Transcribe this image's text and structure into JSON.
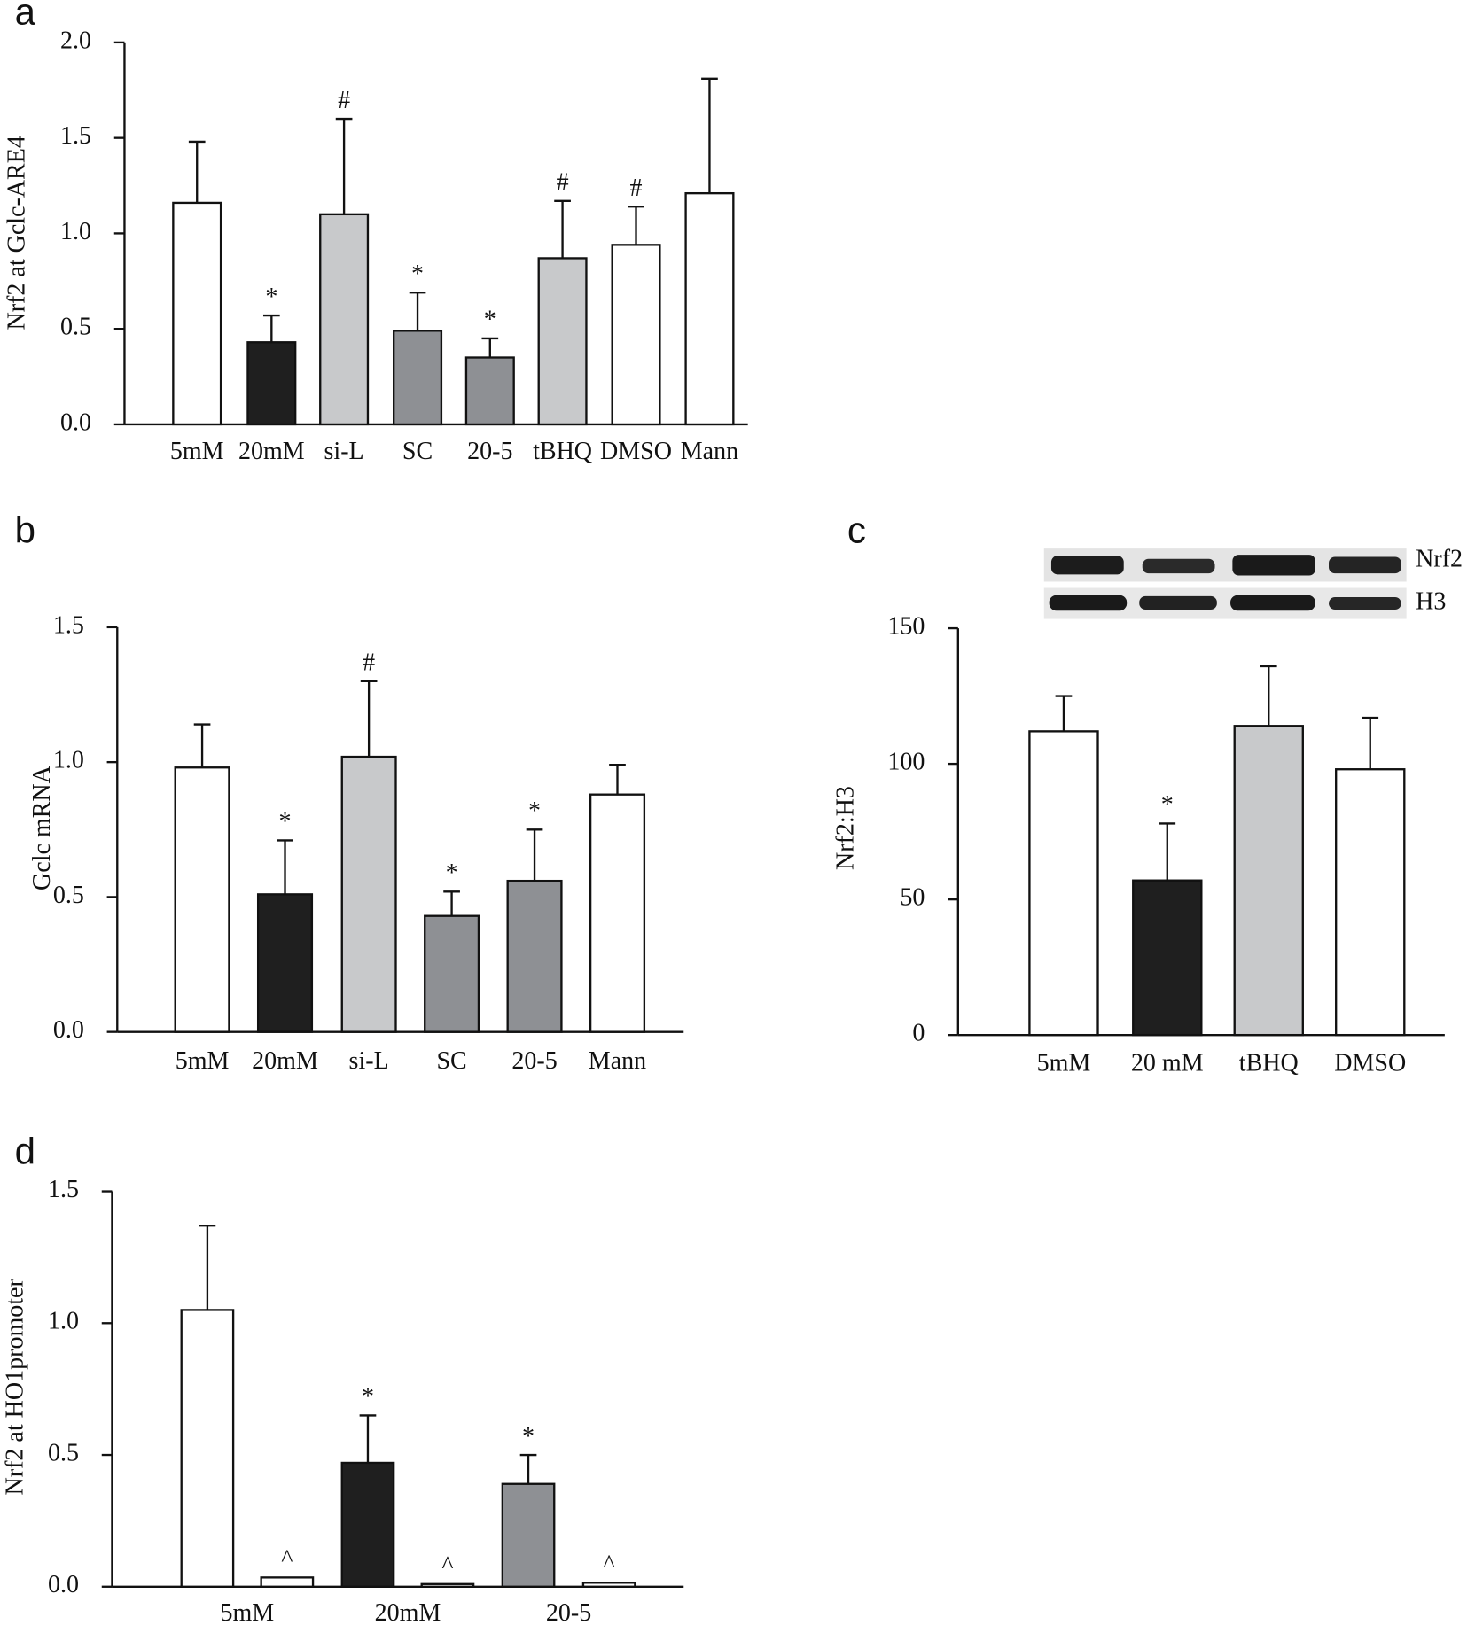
{
  "chart_data": [
    {
      "type": "bar",
      "panel": "a",
      "ylabel": "Nrf2 at Gclc-ARE4",
      "categories": [
        "5mM",
        "20mM",
        "si-L",
        "SC",
        "20-5",
        "tBHQ",
        "DMSO",
        "Mann"
      ],
      "values": [
        1.16,
        0.43,
        1.1,
        0.49,
        0.35,
        0.87,
        0.94,
        1.21
      ],
      "errors": [
        0.32,
        0.14,
        0.5,
        0.2,
        0.1,
        0.3,
        0.2,
        0.6
      ],
      "markers": [
        null,
        "*",
        "#",
        "*",
        "*",
        "#",
        "#",
        null
      ],
      "colors": [
        "#ffffff",
        "#1f1f1f",
        "#c8c9cb",
        "#8e9094",
        "#8e9094",
        "#c8c9cb",
        "#ffffff",
        "#ffffff"
      ],
      "ylim": [
        0,
        2.0
      ],
      "yticks": [
        {
          "value": 0,
          "label": "0.0"
        },
        0.5,
        {
          "value": 1,
          "label": "1.0"
        },
        1.5,
        {
          "value": 2,
          "label": "2.0"
        }
      ]
    },
    {
      "type": "bar",
      "panel": "b",
      "ylabel": "Gclc mRNA",
      "categories": [
        "5mM",
        "20mM",
        "si-L",
        "SC",
        "20-5",
        "Mann"
      ],
      "values": [
        0.98,
        0.51,
        1.02,
        0.43,
        0.56,
        0.88
      ],
      "errors": [
        0.16,
        0.2,
        0.28,
        0.09,
        0.19,
        0.11
      ],
      "markers": [
        null,
        "*",
        "#",
        "*",
        "*",
        null
      ],
      "colors": [
        "#ffffff",
        "#1f1f1f",
        "#c8c9cb",
        "#8e9094",
        "#8e9094",
        "#ffffff"
      ],
      "ylim": [
        0,
        1.5
      ],
      "yticks": [
        {
          "value": 0,
          "label": "0.0"
        },
        0.5,
        {
          "value": 1,
          "label": "1.0"
        },
        1.5
      ]
    },
    {
      "type": "bar",
      "panel": "c",
      "ylabel": "Nrf2:H3",
      "blot_labels": [
        "Nrf2",
        "H3"
      ],
      "categories": [
        "5mM",
        "20 mM",
        "tBHQ",
        "DMSO"
      ],
      "values": [
        112,
        57,
        114,
        98
      ],
      "errors": [
        13,
        21,
        22,
        19
      ],
      "markers": [
        null,
        "*",
        null,
        null
      ],
      "colors": [
        "#ffffff",
        "#1f1f1f",
        "#c8c9cb",
        "#ffffff"
      ],
      "ylim": [
        0,
        150
      ],
      "yticks": [
        0,
        50,
        100,
        150
      ]
    },
    {
      "type": "bar",
      "panel": "d",
      "ylabel": "Nrf2 at HO1promoter",
      "categories": [
        "5mM",
        null,
        "20mM",
        null,
        "20-5",
        null
      ],
      "values": [
        1.05,
        0.035,
        0.47,
        0.01,
        0.39,
        0.015
      ],
      "errors": [
        0.32,
        null,
        0.18,
        null,
        0.11,
        null
      ],
      "markers": [
        null,
        "^",
        "*",
        "^",
        "*",
        "^"
      ],
      "colors": [
        "#ffffff",
        "#ffffff",
        "#1f1f1f",
        "#ffffff",
        "#8e9094",
        "#ffffff"
      ],
      "ylim": [
        0,
        1.5
      ],
      "yticks": [
        {
          "value": 0,
          "label": "0.0"
        },
        0.5,
        {
          "value": 1,
          "label": "1.0"
        },
        1.5
      ]
    }
  ]
}
